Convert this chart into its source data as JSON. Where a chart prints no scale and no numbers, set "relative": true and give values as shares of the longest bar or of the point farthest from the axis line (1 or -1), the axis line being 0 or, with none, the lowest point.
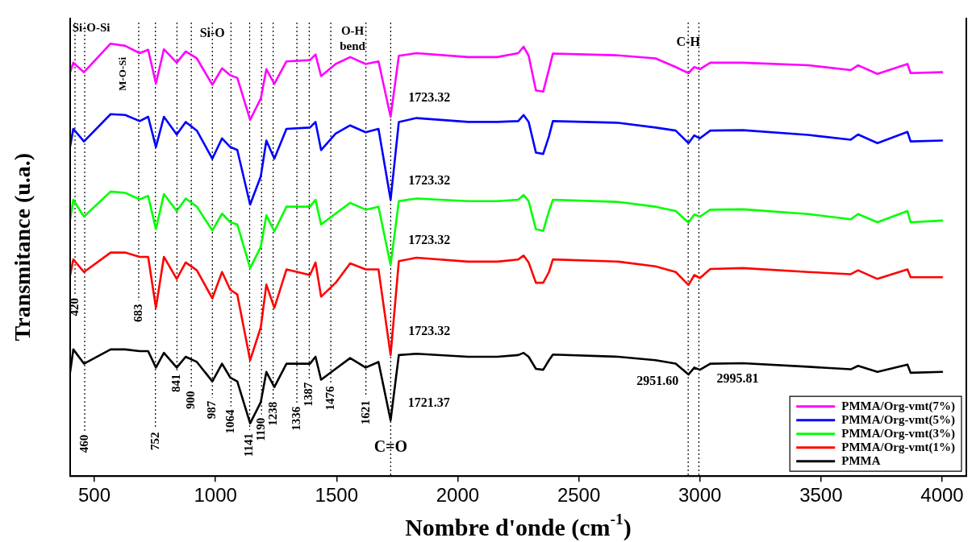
{
  "chart_data": {
    "type": "line",
    "relative": true,
    "xlabel": "Nombre d'onde (cm$^{-1}$)",
    "ylabel": "Transmitance (u.a.)",
    "xlim": [
      400,
      4100
    ],
    "xticks": [
      500,
      1000,
      1500,
      2000,
      2500,
      3000,
      3500,
      4000
    ],
    "grid": false,
    "legend": "bottom right",
    "x": [
      400,
      413,
      457,
      567,
      627,
      687,
      722,
      754,
      787,
      840,
      877,
      923,
      987,
      1027,
      1061,
      1090,
      1143,
      1187,
      1210,
      1243,
      1293,
      1390,
      1413,
      1436,
      1496,
      1556,
      1620,
      1673,
      1723,
      1757,
      1830,
      2043,
      2163,
      2250,
      2272,
      2293,
      2323,
      2353,
      2377,
      2393,
      2663,
      2817,
      2900,
      2953,
      2977,
      3000,
      3043,
      3177,
      3447,
      3623,
      3653,
      3733,
      3857,
      3870,
      4000
    ],
    "series": [
      {
        "name": "PMMA/Org-vmt(7%)",
        "color": "#ff00ff",
        "values": [
          0.934,
          0.956,
          0.934,
          1,
          0.995,
          0.978,
          0.986,
          0.908,
          0.987,
          0.956,
          0.982,
          0.966,
          0.905,
          0.943,
          0.927,
          0.921,
          0.824,
          0.873,
          0.941,
          0.907,
          0.959,
          0.962,
          0.975,
          0.925,
          0.953,
          0.969,
          0.953,
          0.959,
          0.831,
          0.972,
          0.978,
          0.969,
          0.969,
          0.978,
          0.993,
          0.972,
          0.892,
          0.889,
          0.941,
          0.977,
          0.973,
          0.966,
          0.946,
          0.932,
          0.946,
          0.941,
          0.956,
          0.956,
          0.95,
          0.939,
          0.95,
          0.93,
          0.953,
          0.932,
          0.934
        ]
      },
      {
        "name": "PMMA/Org-vmt(5%)",
        "color": "#0000ff",
        "values": [
          0.763,
          0.803,
          0.774,
          0.837,
          0.835,
          0.821,
          0.831,
          0.761,
          0.831,
          0.79,
          0.819,
          0.799,
          0.734,
          0.781,
          0.761,
          0.754,
          0.628,
          0.693,
          0.776,
          0.734,
          0.803,
          0.806,
          0.819,
          0.754,
          0.792,
          0.811,
          0.795,
          0.803,
          0.639,
          0.819,
          0.828,
          0.819,
          0.819,
          0.821,
          0.835,
          0.819,
          0.748,
          0.745,
          0.786,
          0.821,
          0.817,
          0.806,
          0.799,
          0.77,
          0.788,
          0.781,
          0.799,
          0.8,
          0.789,
          0.778,
          0.79,
          0.77,
          0.796,
          0.774,
          0.776
        ]
      },
      {
        "name": "PMMA/Org-vmt(3%)",
        "color": "#00ff00",
        "values": [
          0.594,
          0.639,
          0.6,
          0.658,
          0.655,
          0.64,
          0.648,
          0.571,
          0.652,
          0.613,
          0.642,
          0.623,
          0.568,
          0.607,
          0.587,
          0.582,
          0.481,
          0.53,
          0.603,
          0.566,
          0.623,
          0.623,
          0.639,
          0.582,
          0.607,
          0.632,
          0.616,
          0.623,
          0.488,
          0.636,
          0.642,
          0.636,
          0.636,
          0.639,
          0.65,
          0.636,
          0.571,
          0.567,
          0.613,
          0.639,
          0.634,
          0.623,
          0.613,
          0.586,
          0.605,
          0.6,
          0.616,
          0.617,
          0.606,
          0.594,
          0.606,
          0.587,
          0.613,
          0.587,
          0.591
        ]
      },
      {
        "name": "PMMA/Org-vmt(1%)",
        "color": "#ff0000",
        "values": [
          0.465,
          0.501,
          0.472,
          0.517,
          0.517,
          0.507,
          0.507,
          0.389,
          0.507,
          0.456,
          0.494,
          0.476,
          0.411,
          0.472,
          0.431,
          0.42,
          0.268,
          0.344,
          0.443,
          0.389,
          0.478,
          0.465,
          0.494,
          0.415,
          0.447,
          0.492,
          0.478,
          0.478,
          0.28,
          0.497,
          0.505,
          0.496,
          0.496,
          0.501,
          0.51,
          0.494,
          0.447,
          0.447,
          0.472,
          0.501,
          0.496,
          0.485,
          0.472,
          0.442,
          0.465,
          0.458,
          0.479,
          0.481,
          0.472,
          0.467,
          0.476,
          0.456,
          0.478,
          0.46,
          0.46
        ]
      },
      {
        "name": "PMMA",
        "color": "#000000",
        "values": [
          0.241,
          0.293,
          0.26,
          0.293,
          0.293,
          0.289,
          0.289,
          0.251,
          0.285,
          0.251,
          0.276,
          0.264,
          0.219,
          0.26,
          0.228,
          0.219,
          0.122,
          0.171,
          0.241,
          0.206,
          0.26,
          0.26,
          0.276,
          0.223,
          0.248,
          0.273,
          0.251,
          0.264,
          0.129,
          0.28,
          0.283,
          0.276,
          0.276,
          0.28,
          0.285,
          0.276,
          0.248,
          0.246,
          0.268,
          0.281,
          0.276,
          0.268,
          0.26,
          0.235,
          0.251,
          0.246,
          0.26,
          0.261,
          0.253,
          0.247,
          0.255,
          0.241,
          0.258,
          0.239,
          0.241
        ]
      }
    ],
    "ref_lines": [
      {
        "axis": "x",
        "value": 420,
        "label": "420",
        "color": "#000000",
        "line_style": "dotted"
      },
      {
        "axis": "x",
        "value": 460,
        "label": "460",
        "color": "#000000",
        "line_style": "dotted"
      },
      {
        "axis": "x",
        "value": 683,
        "label": "683",
        "color": "#000000",
        "line_style": "dotted"
      },
      {
        "axis": "x",
        "value": 752,
        "label": "752",
        "color": "#000000",
        "line_style": "dotted"
      },
      {
        "axis": "x",
        "value": 841,
        "label": "841",
        "color": "#000000",
        "line_style": "dotted"
      },
      {
        "axis": "x",
        "value": 900,
        "label": "900",
        "color": "#000000",
        "line_style": "dotted"
      },
      {
        "axis": "x",
        "value": 987,
        "label": "987",
        "color": "#000000",
        "line_style": "dotted"
      },
      {
        "axis": "x",
        "value": 1064,
        "label": "1064",
        "color": "#000000",
        "line_style": "dotted"
      },
      {
        "axis": "x",
        "value": 1141,
        "label": "1141",
        "color": "#000000",
        "line_style": "dotted"
      },
      {
        "axis": "x",
        "value": 1190,
        "label": "1190",
        "color": "#000000",
        "line_style": "dotted"
      },
      {
        "axis": "x",
        "value": 1238,
        "label": "1238",
        "color": "#000000",
        "line_style": "dotted"
      },
      {
        "axis": "x",
        "value": 1336,
        "label": "1336",
        "color": "#000000",
        "line_style": "dotted"
      },
      {
        "axis": "x",
        "value": 1387,
        "label": "1387",
        "color": "#000000",
        "line_style": "dotted"
      },
      {
        "axis": "x",
        "value": 1476,
        "label": "1476",
        "color": "#000000",
        "line_style": "dotted"
      },
      {
        "axis": "x",
        "value": 1621,
        "label": "1621",
        "color": "#000000",
        "line_style": "dotted"
      },
      {
        "axis": "x",
        "value": 1723.32,
        "color": "#000000",
        "line_style": "dotted"
      },
      {
        "axis": "x",
        "value": 2951.6,
        "color": "#000000",
        "line_style": "dotted"
      },
      {
        "axis": "x",
        "value": 2995.81,
        "color": "#000000",
        "line_style": "dotted"
      }
    ],
    "annotations": [
      {
        "text": "1723.32",
        "x": 1723.32,
        "y": 0.874
      },
      {
        "text": "1723.32",
        "x": 1723.32,
        "y": 0.682
      },
      {
        "text": "1723.32",
        "x": 1723.32,
        "y": 0.544
      },
      {
        "text": "1723.32",
        "x": 1723.32,
        "y": 0.334
      },
      {
        "text": "1721.37",
        "x": 1721.37,
        "y": 0.169
      },
      {
        "text": "2951.60",
        "x": 2951.6,
        "y": 0.219
      },
      {
        "text": "2995.81",
        "x": 2995.81,
        "y": 0.224
      },
      {
        "text": "Si-O",
        "x": 987,
        "y": 1.023
      },
      {
        "text": "C-H",
        "x": 2951.6,
        "y": 1.002
      },
      {
        "text": "C=O",
        "x": 1723.32,
        "y": 0.066
      },
      "Si-O-Si",
      "M-O-Si",
      "O-H",
      "bend"
    ]
  }
}
